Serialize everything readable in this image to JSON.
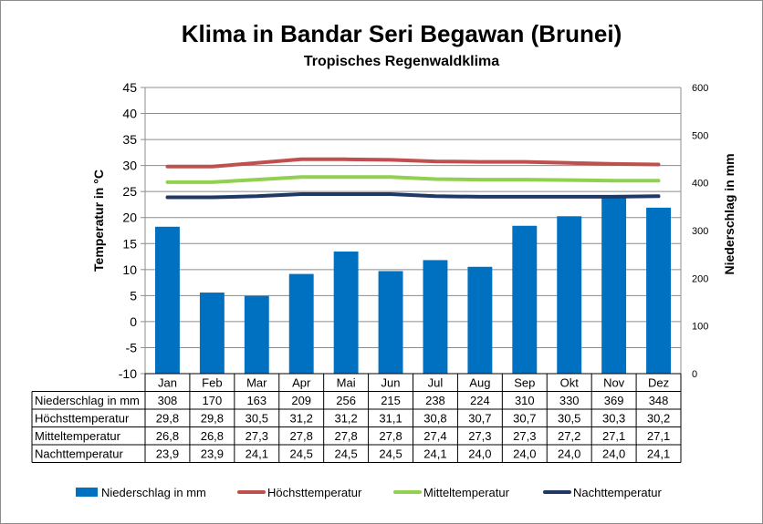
{
  "chart_data": {
    "type": "bar",
    "title": "Klima in Bandar Seri Begawan (Brunei)",
    "subtitle": "Tropisches Regenwaldklima",
    "ylabel_left": "Temperatur in °C",
    "ylabel_right": "Niederschlag in mm",
    "ylim_left": [
      -10,
      45
    ],
    "ylim_right": [
      0,
      600
    ],
    "yticks_left": [
      "45",
      "40",
      "35",
      "30",
      "25",
      "20",
      "15",
      "10",
      "5",
      "0",
      "-5",
      "-10"
    ],
    "yticks_right": [
      "600",
      "500",
      "400",
      "300",
      "200",
      "100",
      "0"
    ],
    "categories": [
      "Jan",
      "Feb",
      "Mar",
      "Apr",
      "Mai",
      "Jun",
      "Jul",
      "Aug",
      "Sep",
      "Okt",
      "Nov",
      "Dez"
    ],
    "series": [
      {
        "name": "Niederschlag in mm",
        "type": "bar",
        "axis": "right",
        "color": "#0070c0",
        "values": [
          308,
          170,
          163,
          209,
          256,
          215,
          238,
          224,
          310,
          330,
          369,
          348
        ],
        "labels": [
          "308",
          "170",
          "163",
          "209",
          "256",
          "215",
          "238",
          "224",
          "310",
          "330",
          "369",
          "348"
        ]
      },
      {
        "name": "Höchsttemperatur",
        "type": "line",
        "axis": "left",
        "color": "#c0504d",
        "values": [
          29.8,
          29.8,
          30.5,
          31.2,
          31.2,
          31.1,
          30.8,
          30.7,
          30.7,
          30.5,
          30.3,
          30.2
        ],
        "labels": [
          "29,8",
          "29,8",
          "30,5",
          "31,2",
          "31,2",
          "31,1",
          "30,8",
          "30,7",
          "30,7",
          "30,5",
          "30,3",
          "30,2"
        ]
      },
      {
        "name": "Mitteltemperatur",
        "type": "line",
        "axis": "left",
        "color": "#92d050",
        "values": [
          26.8,
          26.8,
          27.3,
          27.8,
          27.8,
          27.8,
          27.4,
          27.3,
          27.3,
          27.2,
          27.1,
          27.1
        ],
        "labels": [
          "26,8",
          "26,8",
          "27,3",
          "27,8",
          "27,8",
          "27,8",
          "27,4",
          "27,3",
          "27,3",
          "27,2",
          "27,1",
          "27,1"
        ]
      },
      {
        "name": "Nachttemperatur",
        "type": "line",
        "axis": "left",
        "color": "#1f3864",
        "values": [
          23.9,
          23.9,
          24.1,
          24.5,
          24.5,
          24.5,
          24.1,
          24.0,
          24.0,
          24.0,
          24.0,
          24.1
        ],
        "labels": [
          "23,9",
          "23,9",
          "24,1",
          "24,5",
          "24,5",
          "24,5",
          "24,1",
          "24,0",
          "24,0",
          "24,0",
          "24,0",
          "24,1"
        ]
      }
    ],
    "grid": true,
    "legend_position": "bottom",
    "data_table": true
  }
}
